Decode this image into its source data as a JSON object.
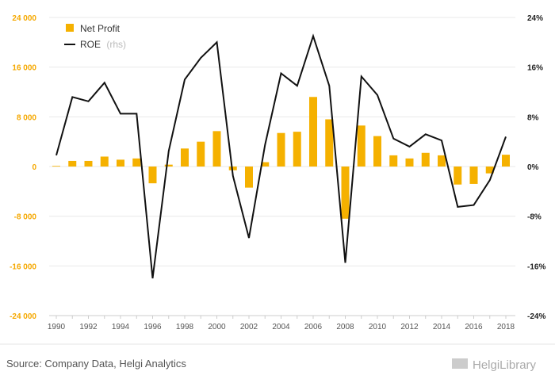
{
  "chart_data": {
    "type": "bar",
    "x": [
      1990,
      1991,
      1992,
      1993,
      1994,
      1995,
      1996,
      1997,
      1998,
      1999,
      2000,
      2001,
      2002,
      2003,
      2004,
      2005,
      2006,
      2007,
      2008,
      2009,
      2010,
      2011,
      2012,
      2013,
      2014,
      2015,
      2016,
      2017,
      2018
    ],
    "x_tick_labels": [
      "1990",
      "1992",
      "1994",
      "1996",
      "1998",
      "2000",
      "2002",
      "2004",
      "2006",
      "2008",
      "2010",
      "2012",
      "2014",
      "2016",
      "2018"
    ],
    "series": [
      {
        "name": "Net Profit",
        "type": "bar",
        "axis": "left",
        "color": "#f5b100",
        "values": [
          100,
          900,
          900,
          1600,
          1100,
          1300,
          -2700,
          300,
          2900,
          4000,
          5700,
          -600,
          -3400,
          700,
          5400,
          5600,
          11200,
          7600,
          -8400,
          6600,
          4900,
          1800,
          1300,
          2200,
          1800,
          -2900,
          -2800,
          -1100,
          1900
        ]
      },
      {
        "name": "ROE",
        "name_suffix": "(rhs)",
        "type": "line",
        "axis": "right",
        "color": "#111111",
        "values": [
          1.8,
          11.2,
          10.5,
          13.5,
          8.5,
          8.5,
          -18.0,
          2.5,
          14.0,
          17.5,
          20.0,
          -1.5,
          -11.5,
          3.5,
          15.0,
          13.0,
          21.0,
          13.0,
          -15.5,
          14.5,
          11.5,
          4.5,
          3.2,
          5.2,
          4.2,
          -6.5,
          -6.2,
          -2.2,
          4.8
        ]
      }
    ],
    "y_left": {
      "min": -24000,
      "max": 24000,
      "ticks": [
        -24000,
        -16000,
        -8000,
        0,
        8000,
        16000,
        24000
      ],
      "tick_labels": [
        "-24 000",
        "-16 000",
        "-8 000",
        "0",
        "8 000",
        "16 000",
        "24 000"
      ],
      "color": "#f5a800"
    },
    "y_right": {
      "min": -24,
      "max": 24,
      "ticks": [
        -24,
        -16,
        -8,
        0,
        8,
        16,
        24
      ],
      "tick_labels": [
        "-24%",
        "-16%",
        "-8%",
        "0%",
        "8%",
        "16%",
        "24%"
      ],
      "color": "#222222"
    },
    "grid": true,
    "legend_position": "top-left"
  },
  "footer": {
    "source": "Source: Company Data, Helgi Analytics",
    "brand": "HelgiLibrary"
  }
}
